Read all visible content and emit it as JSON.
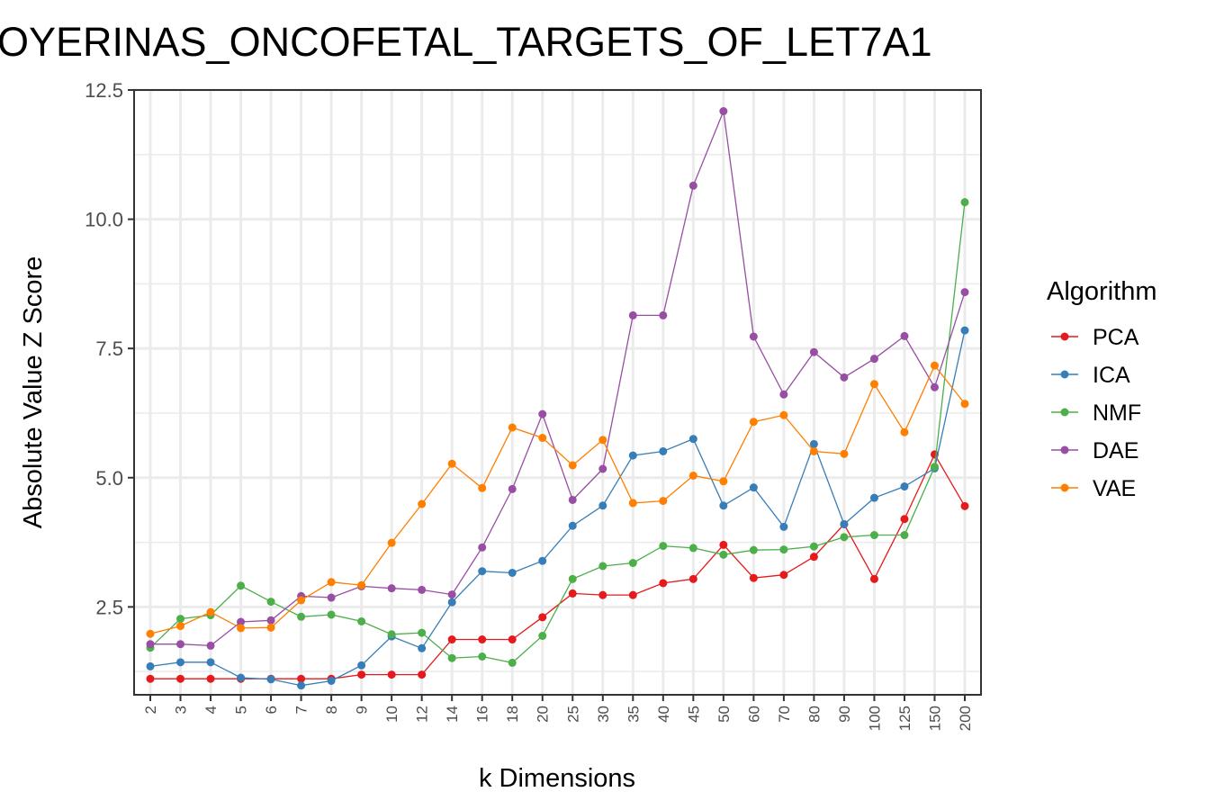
{
  "chart_data": {
    "type": "line",
    "title": "OYERINAS_ONCOFETAL_TARGETS_OF_LET7A1",
    "xlabel": "k Dimensions",
    "ylabel": "Absolute Value Z Score",
    "ylim": [
      0.8,
      12.5
    ],
    "yticks": [
      2.5,
      5.0,
      7.5,
      10.0,
      12.5
    ],
    "ytick_labels": [
      "2.5",
      "5.0",
      "7.5",
      "10.0",
      "12.5"
    ],
    "grid": true,
    "legend": {
      "title": "Algorithm",
      "position": "right"
    },
    "categories": [
      "2",
      "3",
      "4",
      "5",
      "6",
      "7",
      "8",
      "9",
      "10",
      "12",
      "14",
      "16",
      "18",
      "20",
      "25",
      "30",
      "35",
      "40",
      "45",
      "50",
      "60",
      "70",
      "80",
      "90",
      "100",
      "125",
      "150",
      "200"
    ],
    "series": [
      {
        "name": "PCA",
        "color": "#e41a1c",
        "values": [
          1.11,
          1.11,
          1.11,
          1.11,
          1.11,
          1.11,
          1.11,
          1.19,
          1.19,
          1.19,
          1.87,
          1.87,
          1.87,
          2.3,
          2.76,
          2.73,
          2.73,
          2.96,
          3.04,
          3.7,
          3.06,
          3.12,
          3.47,
          4.1,
          3.04,
          4.2,
          5.45,
          4.45
        ]
      },
      {
        "name": "ICA",
        "color": "#377eb8",
        "values": [
          1.35,
          1.43,
          1.43,
          1.13,
          1.1,
          0.98,
          1.07,
          1.37,
          1.93,
          1.7,
          2.59,
          3.19,
          3.16,
          3.39,
          4.07,
          4.46,
          5.43,
          5.51,
          5.75,
          4.46,
          4.81,
          4.05,
          5.65,
          4.1,
          4.61,
          4.83,
          5.18,
          7.85
        ]
      },
      {
        "name": "NMF",
        "color": "#4daf4a",
        "values": [
          1.71,
          2.27,
          2.34,
          2.91,
          2.6,
          2.31,
          2.35,
          2.22,
          1.97,
          2.0,
          1.51,
          1.54,
          1.42,
          1.94,
          3.04,
          3.29,
          3.35,
          3.68,
          3.64,
          3.51,
          3.6,
          3.61,
          3.67,
          3.85,
          3.89,
          3.89,
          5.21,
          10.33
        ]
      },
      {
        "name": "DAE",
        "color": "#984ea3",
        "values": [
          1.78,
          1.78,
          1.75,
          2.21,
          2.24,
          2.71,
          2.68,
          2.9,
          2.86,
          2.83,
          2.74,
          3.65,
          4.78,
          6.23,
          4.57,
          5.17,
          8.14,
          8.14,
          10.65,
          12.09,
          7.73,
          6.61,
          7.43,
          6.94,
          7.3,
          7.74,
          6.75,
          8.59
        ]
      },
      {
        "name": "VAE",
        "color": "#ff7f00",
        "values": [
          1.98,
          2.13,
          2.4,
          2.09,
          2.1,
          2.63,
          2.98,
          2.92,
          3.74,
          4.49,
          5.27,
          4.8,
          5.97,
          5.77,
          5.24,
          5.73,
          4.51,
          4.55,
          5.04,
          4.93,
          6.08,
          6.21,
          5.51,
          5.46,
          6.81,
          5.88,
          7.17,
          6.43
        ]
      }
    ]
  }
}
